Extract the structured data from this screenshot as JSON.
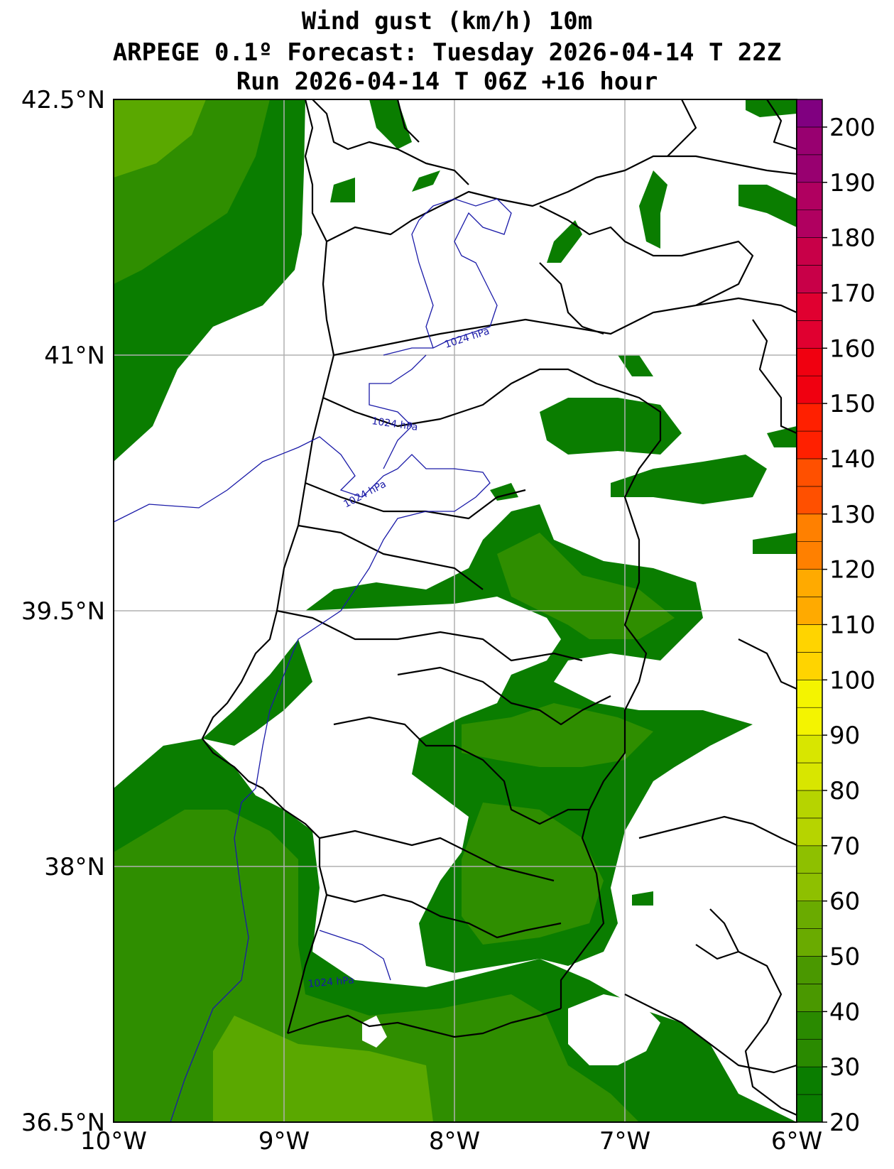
{
  "title": {
    "line1": "Wind gust (km/h) 10m",
    "line2": "ARPEGE 0.1º Forecast: Tuesday 2026-04-14 T 22Z",
    "line3": "Run 2026-04-14 T 06Z +16 hour"
  },
  "axes": {
    "lat_labels": [
      "42.5°N",
      "41°N",
      "39.5°N",
      "38°N",
      "36.5°N"
    ],
    "lon_labels": [
      "10°W",
      "9°W",
      "8°W",
      "7°W",
      "6°W"
    ]
  },
  "isobar_labels": [
    "1024 hPa",
    "1024 hPa",
    "1024 hPa",
    "1024 hPa"
  ],
  "colorbar": {
    "ticks": [
      "20",
      "30",
      "40",
      "50",
      "60",
      "70",
      "80",
      "90",
      "100",
      "110",
      "120",
      "130",
      "140",
      "150",
      "160",
      "170",
      "180",
      "190",
      "200"
    ],
    "colors": [
      "#0a7d00",
      "#2a8a00",
      "#4a9800",
      "#6aab00",
      "#8ec000",
      "#b6d400",
      "#d8e600",
      "#f4f400",
      "#ffd400",
      "#ffaa00",
      "#ff8000",
      "#ff5000",
      "#ff2000",
      "#f00010",
      "#e00030",
      "#c80048",
      "#b00060",
      "#980070",
      "#800080"
    ]
  },
  "colors": {
    "gust_low": "#0a7d00",
    "gust_mid": "#2f8e00",
    "gust_high": "#5aa800",
    "isobar": "#1a1aa8"
  }
}
